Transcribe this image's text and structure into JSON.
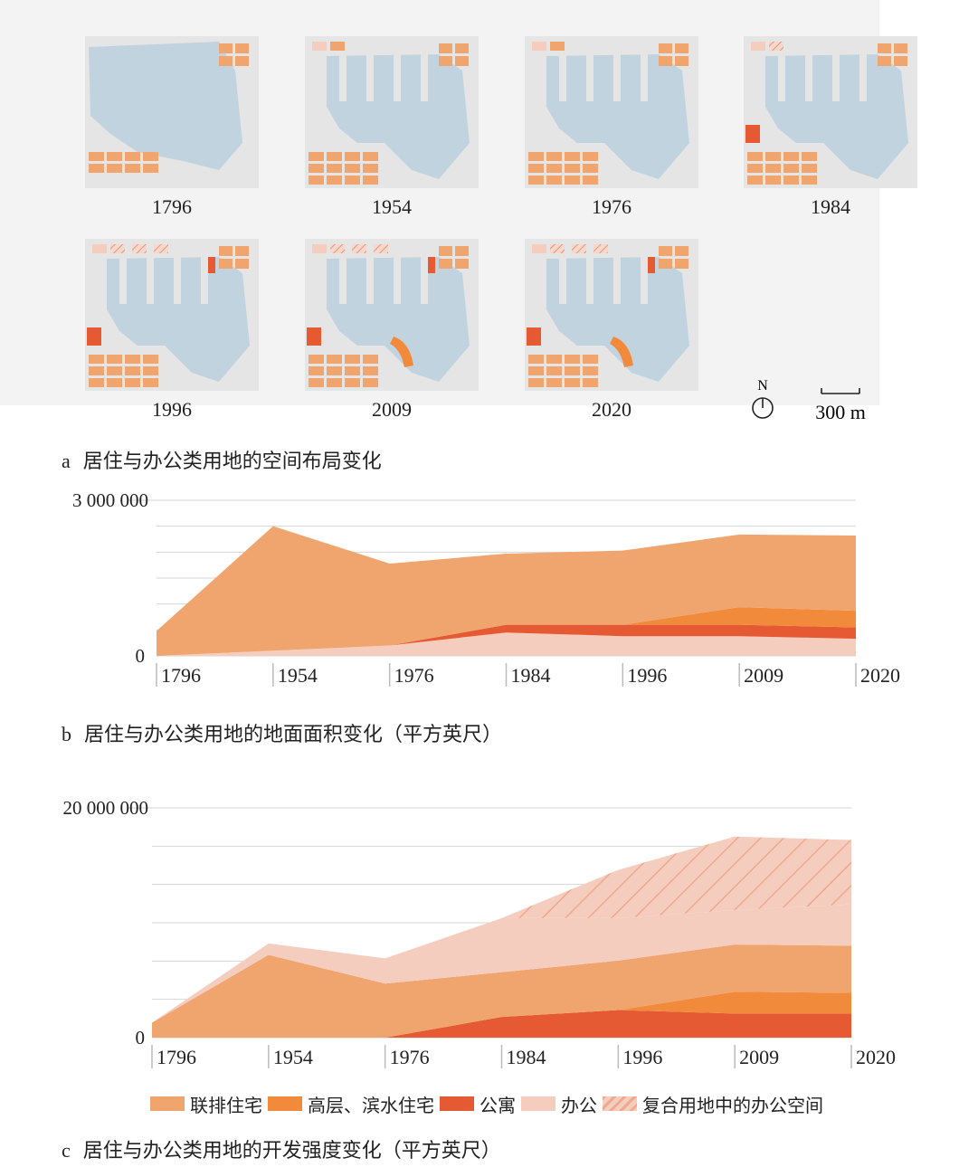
{
  "panel_a": {
    "years": [
      "1796",
      "1954",
      "1976",
      "1984",
      "1996",
      "2009",
      "2020"
    ],
    "north_label": "N",
    "scale_label": "300 m",
    "caption_letter": "a",
    "caption_text": "居住与办公类用地的空间布局变化"
  },
  "colors": {
    "rowhouse": "#F0A46E",
    "highrise": "#F28A3C",
    "apartment": "#E55A33",
    "office": "#F5CDBF",
    "mixed_office": "#F0A88E",
    "water": "#C2D3E0",
    "land": "#E5E5E5"
  },
  "legend": {
    "items": [
      "联排住宅",
      "高层、滨水住宅",
      "公寓",
      "办公",
      "复合用地中的办公空间"
    ]
  },
  "chart_data": [
    {
      "type": "area",
      "stacked": true,
      "caption_letter": "b",
      "caption_text": "居住与办公类用地的地面面积变化（平方英尺）",
      "x": [
        "1796",
        "1954",
        "1976",
        "1984",
        "1996",
        "2009",
        "2020"
      ],
      "ylim": [
        0,
        3000000
      ],
      "ytick_labels": [
        "0",
        "3 000 000"
      ],
      "series": [
        {
          "name": "办公",
          "key": "office",
          "values": [
            0,
            100000,
            200000,
            450000,
            380000,
            380000,
            330000
          ]
        },
        {
          "name": "公寓",
          "key": "apartment",
          "values": [
            0,
            0,
            0,
            150000,
            220000,
            220000,
            220000
          ]
        },
        {
          "name": "高层、滨水住宅",
          "key": "highrise",
          "values": [
            0,
            0,
            0,
            0,
            0,
            340000,
            320000
          ]
        },
        {
          "name": "联排住宅",
          "key": "rowhouse",
          "values": [
            480000,
            2400000,
            1580000,
            1370000,
            1430000,
            1400000,
            1450000
          ]
        }
      ]
    },
    {
      "type": "area",
      "stacked": true,
      "caption_letter": "c",
      "caption_text": "居住与办公类用地的开发强度变化（平方英尺）",
      "x": [
        "1796",
        "1954",
        "1976",
        "1984",
        "1996",
        "2009",
        "2020"
      ],
      "ylim": [
        0,
        20000000
      ],
      "ytick_labels": [
        "0",
        "20 000 000"
      ],
      "series": [
        {
          "name": "公寓",
          "key": "apartment",
          "values": [
            0,
            0,
            0,
            1800000,
            2400000,
            2100000,
            2100000
          ]
        },
        {
          "name": "高层、滨水住宅",
          "key": "highrise",
          "values": [
            0,
            0,
            0,
            0,
            0,
            1900000,
            1800000
          ]
        },
        {
          "name": "联排住宅",
          "key": "rowhouse",
          "values": [
            1300000,
            7200000,
            4700000,
            3900000,
            4300000,
            4100000,
            4100000
          ]
        },
        {
          "name": "办公",
          "key": "office",
          "values": [
            0,
            1000000,
            2200000,
            4700000,
            3700000,
            3000000,
            3600000
          ]
        },
        {
          "name": "复合用地中的办公空间",
          "key": "mixed_office",
          "values": [
            0,
            0,
            0,
            0,
            4200000,
            6400000,
            5600000
          ]
        }
      ]
    }
  ]
}
